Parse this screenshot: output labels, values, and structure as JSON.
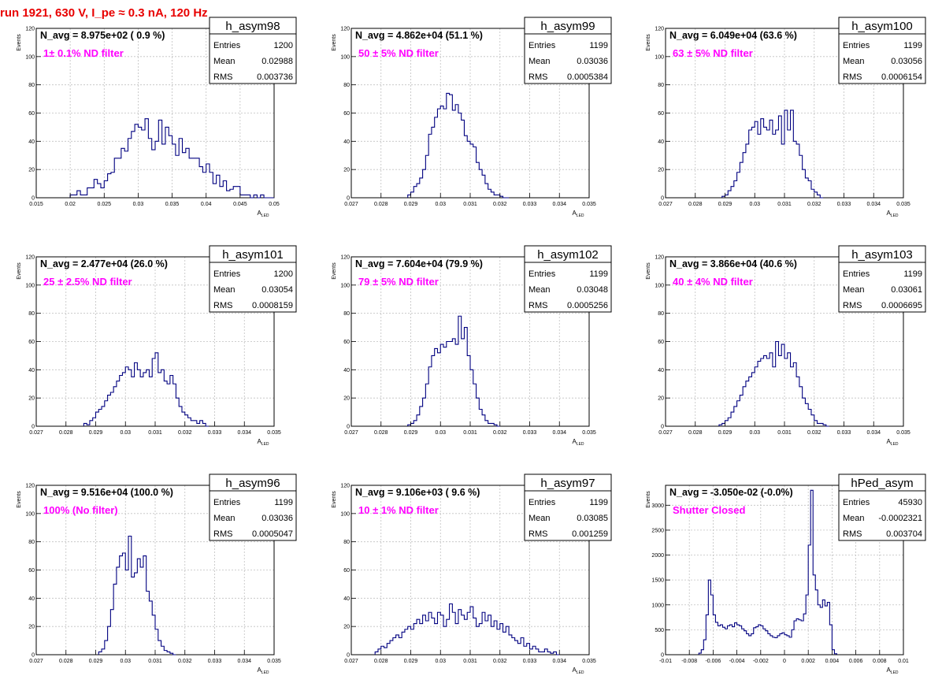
{
  "header": "run 1921,   630 V, I_pe ≈ 0.3 nA, 120 Hz",
  "colors": {
    "header": "#e80000",
    "note": "#ff00ff",
    "hist": "#000080",
    "grid": "#c0c0c0"
  },
  "axis_titles": {
    "x_main": "A",
    "x_sub": "LED",
    "y": "Events"
  },
  "stat_labels": [
    "Entries",
    "Mean",
    "RMS"
  ],
  "chart_data": [
    {
      "type": "histogram",
      "name": "h_asym98",
      "navg": "N_avg = 8.975e+02 ( 0.9 %)",
      "note": "1± 0.1% ND filter",
      "stats": [
        "1200",
        "0.02988",
        "0.003736"
      ],
      "xlim": [
        0.015,
        0.05
      ],
      "ylim": [
        0,
        120
      ],
      "xticks": [
        0.015,
        0.02,
        0.025,
        0.03,
        0.035,
        0.04,
        0.045,
        0.05
      ],
      "xticklabels": [
        "0.015",
        "0.02",
        "0.025",
        "0.03",
        "0.035",
        "0.04",
        "0.045",
        "0.05"
      ],
      "yticks": [
        0,
        20,
        40,
        60,
        80,
        100,
        120
      ],
      "yticklabels": [
        "0",
        "20",
        "40",
        "60",
        "80",
        "100",
        "120"
      ],
      "xstart": 0.02,
      "bin": 0.0005,
      "values": [
        2,
        2,
        5,
        2,
        2,
        7,
        7,
        13,
        10,
        7,
        12,
        17,
        18,
        28,
        28,
        35,
        33,
        42,
        47,
        52,
        50,
        48,
        56,
        42,
        34,
        40,
        55,
        38,
        50,
        44,
        38,
        30,
        42,
        32,
        35,
        28,
        28,
        28,
        22,
        18,
        24,
        18,
        10,
        16,
        8,
        12,
        5,
        6,
        8,
        8,
        2,
        2,
        2,
        0,
        2,
        0,
        2,
        0,
        0,
        0
      ]
    },
    {
      "type": "histogram",
      "name": "h_asym99",
      "navg": "N_avg = 4.862e+04 (51.1 %)",
      "note": "50 ± 5% ND filter",
      "stats": [
        "1199",
        "0.03036",
        "0.0005384"
      ],
      "xlim": [
        0.027,
        0.035
      ],
      "ylim": [
        0,
        120
      ],
      "xticks": [
        0.027,
        0.028,
        0.029,
        0.03,
        0.031,
        0.032,
        0.033,
        0.034,
        0.035
      ],
      "xticklabels": [
        "0.027",
        "0.028",
        "0.029",
        "0.03",
        "0.031",
        "0.032",
        "0.033",
        "0.034",
        "0.035"
      ],
      "yticks": [
        0,
        20,
        40,
        60,
        80,
        100,
        120
      ],
      "yticklabels": [
        "0",
        "20",
        "40",
        "60",
        "80",
        "100",
        "120"
      ],
      "xstart": 0.0289,
      "bin": 0.0001,
      "values": [
        2,
        4,
        8,
        10,
        14,
        20,
        30,
        45,
        50,
        57,
        63,
        65,
        63,
        74,
        73,
        62,
        66,
        60,
        55,
        44,
        40,
        38,
        36,
        25,
        20,
        16,
        10,
        6,
        4,
        2,
        2,
        1,
        0,
        0
      ]
    },
    {
      "type": "histogram",
      "name": "h_asym100",
      "navg": "N_avg = 6.049e+04 (63.6 %)",
      "note": "63 ± 5% ND filter",
      "stats": [
        "1199",
        "0.03056",
        "0.0006154"
      ],
      "xlim": [
        0.027,
        0.035
      ],
      "ylim": [
        0,
        120
      ],
      "xticks": [
        0.027,
        0.028,
        0.029,
        0.03,
        0.031,
        0.032,
        0.033,
        0.034,
        0.035
      ],
      "xticklabels": [
        "0.027",
        "0.028",
        "0.029",
        "0.03",
        "0.031",
        "0.032",
        "0.033",
        "0.034",
        "0.035"
      ],
      "yticks": [
        0,
        20,
        40,
        60,
        80,
        100,
        120
      ],
      "yticklabels": [
        "0",
        "20",
        "40",
        "60",
        "80",
        "100",
        "120"
      ],
      "xstart": 0.0289,
      "bin": 0.0001,
      "values": [
        1,
        2,
        5,
        8,
        12,
        18,
        25,
        32,
        38,
        48,
        50,
        54,
        45,
        56,
        50,
        48,
        55,
        45,
        48,
        58,
        38,
        62,
        48,
        62,
        40,
        38,
        30,
        20,
        14,
        12,
        6,
        4,
        2,
        0
      ]
    },
    {
      "type": "histogram",
      "name": "h_asym101",
      "navg": "N_avg = 2.477e+04 (26.0 %)",
      "note": "25 ± 2.5% ND filter",
      "stats": [
        "1200",
        "0.03054",
        "0.0008159"
      ],
      "xlim": [
        0.027,
        0.035
      ],
      "ylim": [
        0,
        120
      ],
      "xticks": [
        0.027,
        0.028,
        0.029,
        0.03,
        0.031,
        0.032,
        0.033,
        0.034,
        0.035
      ],
      "xticklabels": [
        "0.027",
        "0.028",
        "0.029",
        "0.03",
        "0.031",
        "0.032",
        "0.033",
        "0.034",
        "0.035"
      ],
      "yticks": [
        0,
        20,
        40,
        60,
        80,
        100,
        120
      ],
      "yticklabels": [
        "0",
        "20",
        "40",
        "60",
        "80",
        "100",
        "120"
      ],
      "xstart": 0.0286,
      "bin": 0.0001,
      "values": [
        2,
        1,
        4,
        6,
        10,
        12,
        14,
        18,
        22,
        24,
        28,
        32,
        36,
        38,
        42,
        40,
        35,
        45,
        40,
        35,
        38,
        40,
        35,
        48,
        52,
        38,
        40,
        32,
        30,
        36,
        30,
        20,
        14,
        10,
        8,
        6,
        4,
        4,
        2,
        4,
        2,
        0
      ]
    },
    {
      "type": "histogram",
      "name": "h_asym102",
      "navg": "N_avg = 7.604e+04 (79.9 %)",
      "note": "79 ± 5% ND filter",
      "stats": [
        "1199",
        "0.03048",
        "0.0005256"
      ],
      "xlim": [
        0.027,
        0.035
      ],
      "ylim": [
        0,
        120
      ],
      "xticks": [
        0.027,
        0.028,
        0.029,
        0.03,
        0.031,
        0.032,
        0.033,
        0.034,
        0.035
      ],
      "xticklabels": [
        "0.027",
        "0.028",
        "0.029",
        "0.03",
        "0.031",
        "0.032",
        "0.033",
        "0.034",
        "0.035"
      ],
      "yticks": [
        0,
        20,
        40,
        60,
        80,
        100,
        120
      ],
      "yticklabels": [
        "0",
        "20",
        "40",
        "60",
        "80",
        "100",
        "120"
      ],
      "xstart": 0.0289,
      "bin": 0.0001,
      "values": [
        1,
        2,
        4,
        8,
        14,
        20,
        30,
        42,
        50,
        55,
        52,
        58,
        56,
        60,
        60,
        62,
        58,
        78,
        62,
        70,
        50,
        40,
        30,
        20,
        12,
        8,
        4,
        2,
        2,
        1,
        0
      ]
    },
    {
      "type": "histogram",
      "name": "h_asym103",
      "navg": "N_avg = 3.866e+04 (40.6 %)",
      "note": "40 ± 4% ND filter",
      "stats": [
        "1199",
        "0.03061",
        "0.0006695"
      ],
      "xlim": [
        0.027,
        0.035
      ],
      "ylim": [
        0,
        120
      ],
      "xticks": [
        0.027,
        0.028,
        0.029,
        0.03,
        0.031,
        0.032,
        0.033,
        0.034,
        0.035
      ],
      "xticklabels": [
        "0.027",
        "0.028",
        "0.029",
        "0.03",
        "0.031",
        "0.032",
        "0.033",
        "0.034",
        "0.035"
      ],
      "yticks": [
        0,
        20,
        40,
        60,
        80,
        100,
        120
      ],
      "yticklabels": [
        "0",
        "20",
        "40",
        "60",
        "80",
        "100",
        "120"
      ],
      "xstart": 0.0288,
      "bin": 0.0001,
      "values": [
        1,
        2,
        4,
        6,
        10,
        14,
        18,
        22,
        28,
        32,
        35,
        38,
        42,
        46,
        48,
        50,
        48,
        52,
        42,
        60,
        50,
        58,
        48,
        52,
        42,
        45,
        35,
        28,
        20,
        16,
        12,
        8,
        4,
        2,
        2,
        1,
        0
      ]
    },
    {
      "type": "histogram",
      "name": "h_asym96",
      "navg": "N_avg = 9.516e+04 (100.0 %)",
      "note": "100% (No filter)",
      "stats": [
        "1199",
        "0.03036",
        "0.0005047"
      ],
      "xlim": [
        0.027,
        0.035
      ],
      "ylim": [
        0,
        120
      ],
      "xticks": [
        0.027,
        0.028,
        0.029,
        0.03,
        0.031,
        0.032,
        0.033,
        0.034,
        0.035
      ],
      "xticklabels": [
        "0.027",
        "0.028",
        "0.029",
        "0.03",
        "0.031",
        "0.032",
        "0.033",
        "0.034",
        "0.035"
      ],
      "yticks": [
        0,
        20,
        40,
        60,
        80,
        100,
        120
      ],
      "yticklabels": [
        "0",
        "20",
        "40",
        "60",
        "80",
        "100",
        "120"
      ],
      "xstart": 0.0291,
      "bin": 0.0001,
      "values": [
        2,
        4,
        10,
        20,
        32,
        50,
        62,
        70,
        72,
        60,
        84,
        55,
        58,
        68,
        62,
        70,
        45,
        38,
        28,
        18,
        10,
        6,
        3,
        2,
        1,
        0
      ]
    },
    {
      "type": "histogram",
      "name": "h_asym97",
      "navg": "N_avg = 9.106e+03 ( 9.6 %)",
      "note": "10 ± 1% ND filter",
      "stats": [
        "1199",
        "0.03085",
        "0.001259"
      ],
      "xlim": [
        0.027,
        0.035
      ],
      "ylim": [
        0,
        120
      ],
      "xticks": [
        0.027,
        0.028,
        0.029,
        0.03,
        0.031,
        0.032,
        0.033,
        0.034,
        0.035
      ],
      "xticklabels": [
        "0.027",
        "0.028",
        "0.029",
        "0.03",
        "0.031",
        "0.032",
        "0.033",
        "0.034",
        "0.035"
      ],
      "yticks": [
        0,
        20,
        40,
        60,
        80,
        100,
        120
      ],
      "yticklabels": [
        "0",
        "20",
        "40",
        "60",
        "80",
        "100",
        "120"
      ],
      "xstart": 0.0278,
      "bin": 0.0001,
      "values": [
        2,
        4,
        6,
        5,
        8,
        10,
        12,
        14,
        12,
        16,
        18,
        20,
        18,
        22,
        25,
        22,
        28,
        24,
        30,
        26,
        22,
        30,
        28,
        20,
        25,
        36,
        30,
        22,
        32,
        28,
        25,
        30,
        34,
        26,
        20,
        22,
        30,
        24,
        28,
        20,
        24,
        18,
        22,
        16,
        20,
        14,
        12,
        10,
        8,
        12,
        6,
        8,
        4,
        6,
        4,
        2,
        2,
        4,
        2,
        1,
        2,
        0
      ]
    },
    {
      "type": "histogram",
      "name": "hPed_asym",
      "navg": "N_avg = -3.050e-02 (-0.0%)",
      "note": "Shutter Closed",
      "stats": [
        "45930",
        "-0.0002321",
        "0.003704"
      ],
      "xlim": [
        -0.01,
        0.01
      ],
      "ylim": [
        0,
        3400
      ],
      "xticks": [
        -0.01,
        -0.008,
        -0.006,
        -0.004,
        -0.002,
        0,
        0.002,
        0.004,
        0.006,
        0.008,
        0.01
      ],
      "xticklabels": [
        "-0.01",
        "-0.008",
        "-0.006",
        "-0.004",
        "-0.002",
        "0",
        "0.002",
        "0.004",
        "0.006",
        "0.008",
        "0.01"
      ],
      "yticks": [
        0,
        500,
        1000,
        1500,
        2000,
        2500,
        3000
      ],
      "yticklabels": [
        "0",
        "500",
        "1000",
        "1500",
        "2000",
        "2500",
        "3000"
      ],
      "xstart": -0.0072,
      "bin": 0.0002,
      "values": [
        30,
        100,
        300,
        800,
        1500,
        1200,
        800,
        650,
        580,
        600,
        550,
        520,
        580,
        600,
        560,
        640,
        600,
        580,
        520,
        480,
        420,
        380,
        420,
        540,
        560,
        600,
        580,
        520,
        480,
        420,
        380,
        350,
        340,
        380,
        420,
        440,
        400,
        380,
        350,
        500,
        680,
        720,
        700,
        680,
        820,
        1200,
        2200,
        3300,
        1600,
        1300,
        1000,
        950,
        1100,
        980,
        1050,
        600,
        100,
        20
      ]
    }
  ]
}
